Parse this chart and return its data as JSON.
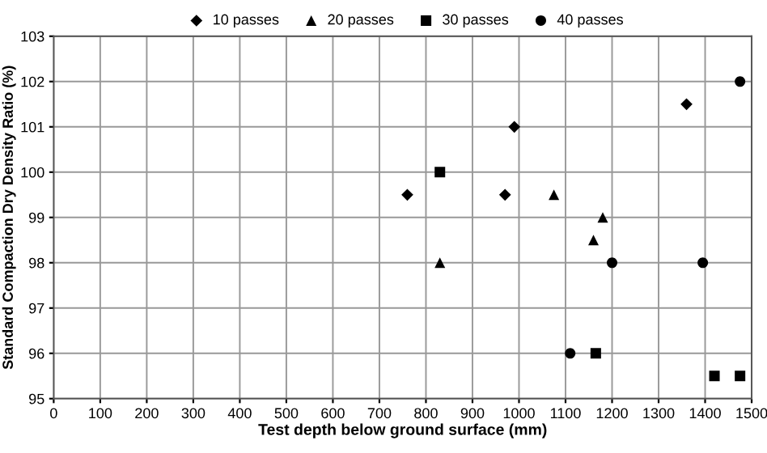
{
  "chart_data": {
    "type": "scatter",
    "xlabel": "Test depth below ground surface (mm)",
    "ylabel": "Standard Compaction Dry Density Ratio (%)",
    "series": [
      {
        "name": "10 passes",
        "color": "#000000",
        "marker": "diamond",
        "x": [
          760,
          970,
          990,
          1360
        ],
        "values": [
          99.5,
          99.5,
          101,
          101.5
        ]
      },
      {
        "name": "20 passes",
        "color": "#000000",
        "marker": "triangle",
        "x": [
          830,
          1075,
          1160,
          1180
        ],
        "values": [
          98,
          99.5,
          98.5,
          99
        ]
      },
      {
        "name": "30 passes",
        "color": "#000000",
        "marker": "square",
        "x": [
          830,
          1165,
          1420,
          1475
        ],
        "values": [
          100,
          96,
          95.5,
          95.5
        ]
      },
      {
        "name": "40 passes",
        "color": "#000000",
        "marker": "circle",
        "x": [
          1110,
          1200,
          1395,
          1475
        ],
        "values": [
          96,
          98,
          98,
          102
        ]
      }
    ],
    "xlim": [
      0,
      1500
    ],
    "xticks": [
      0,
      100,
      200,
      300,
      400,
      500,
      600,
      700,
      800,
      900,
      1000,
      1100,
      1200,
      1300,
      1400,
      1500
    ],
    "ylim": [
      95,
      103
    ],
    "yticks": [
      95,
      96,
      97,
      98,
      99,
      100,
      101,
      102,
      103
    ],
    "grid": true,
    "legend": "top"
  }
}
